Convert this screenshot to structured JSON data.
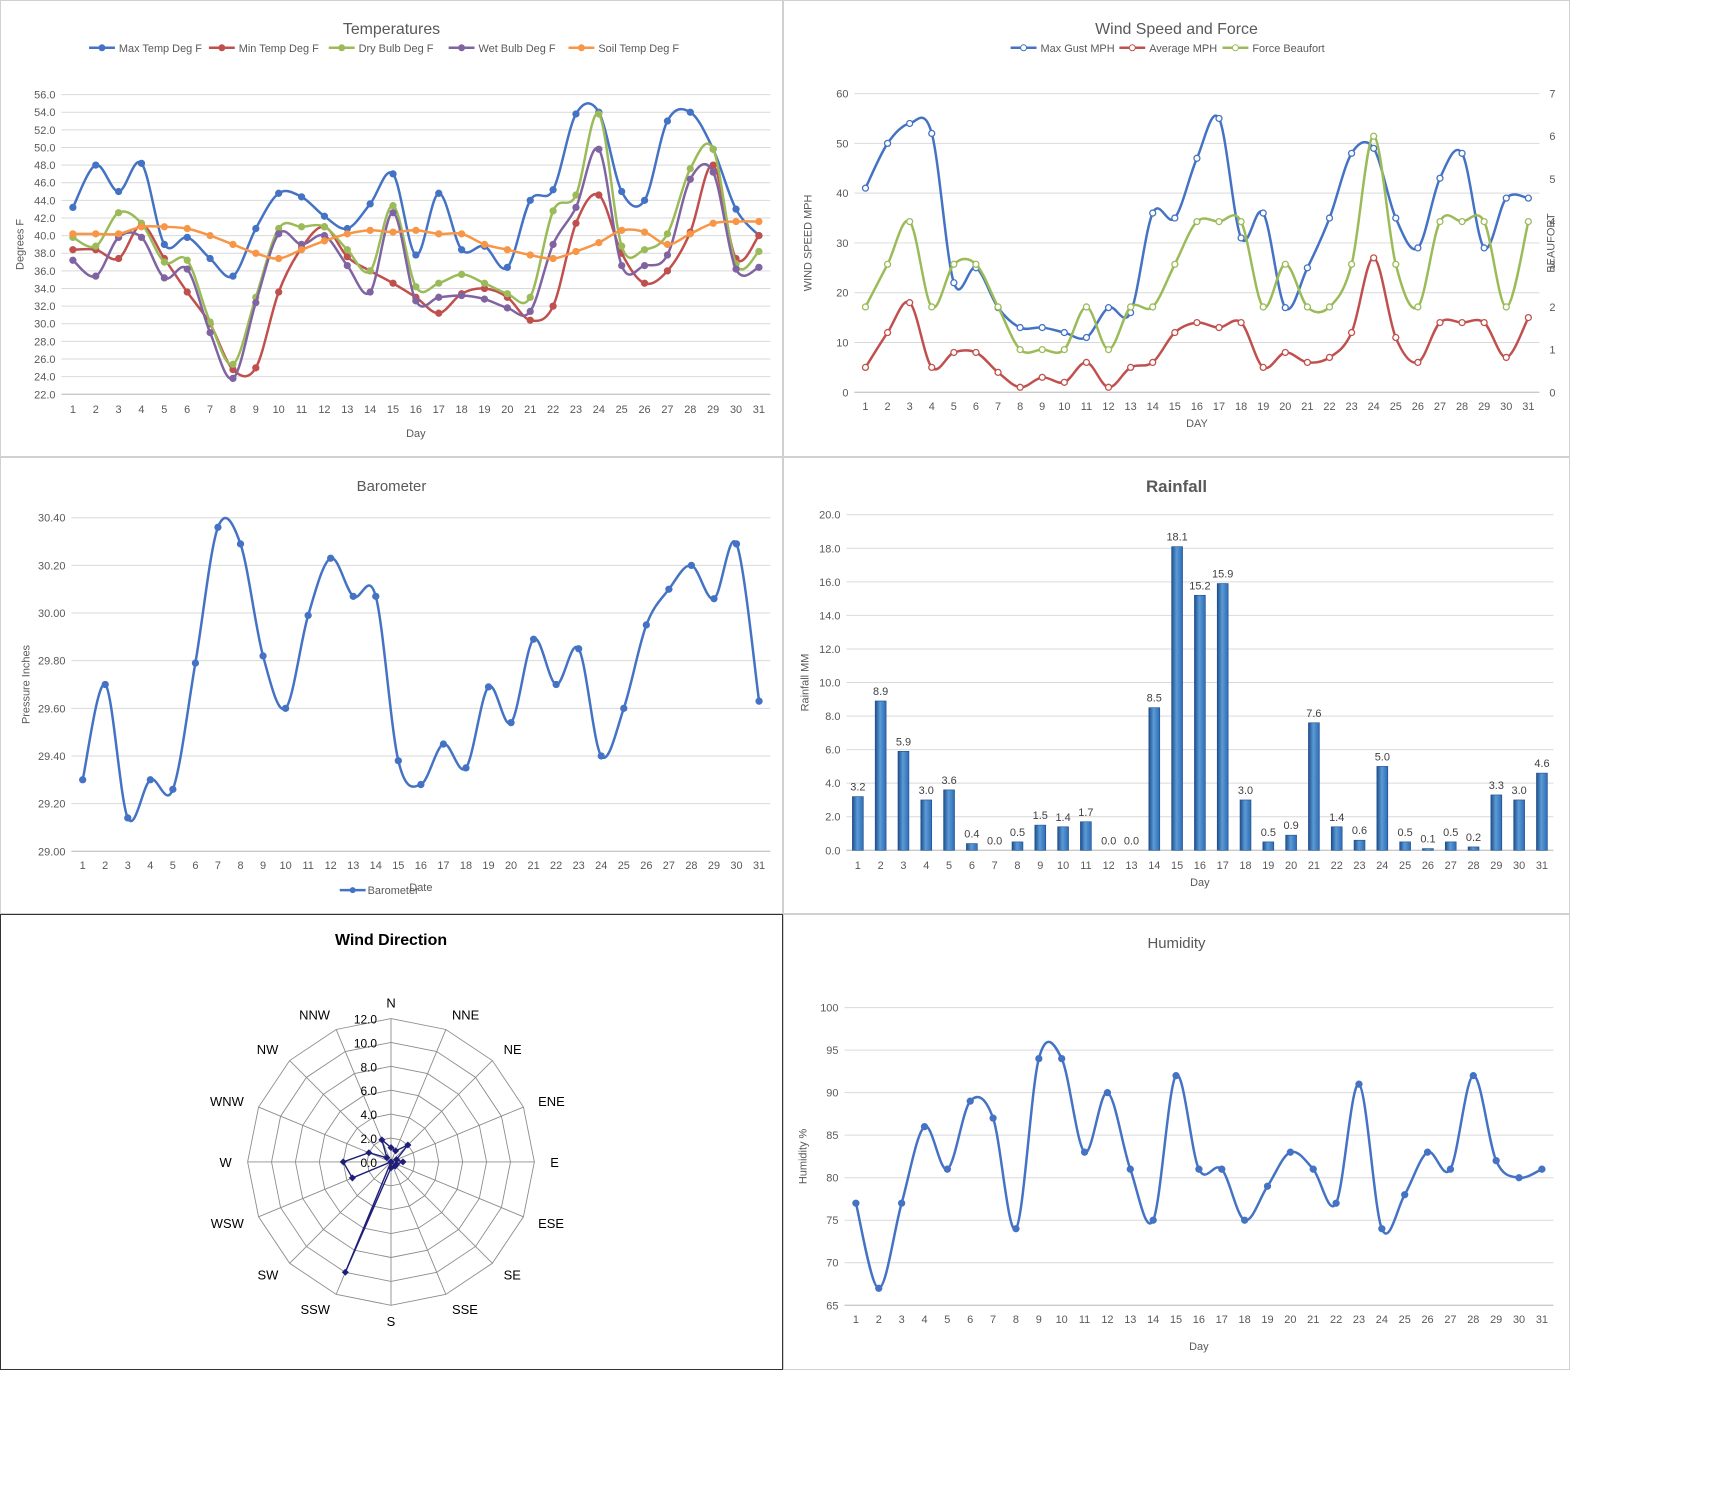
{
  "chart_data": [
    {
      "id": "temperatures",
      "type": "line",
      "title": "Temperatures",
      "xlabel": "Day",
      "ylabel": "Degrees F",
      "ylim": [
        22.0,
        56.0
      ],
      "y_step": 2.0,
      "y_decimals": 1,
      "grid": true,
      "legend": "top",
      "markers": "filled",
      "categories": [
        "1",
        "2",
        "3",
        "4",
        "5",
        "6",
        "7",
        "8",
        "9",
        "10",
        "11",
        "12",
        "13",
        "14",
        "15",
        "16",
        "17",
        "18",
        "19",
        "20",
        "21",
        "22",
        "23",
        "24",
        "25",
        "26",
        "27",
        "28",
        "29",
        "30",
        "31"
      ],
      "series": [
        {
          "name": "Max Temp Deg F",
          "color": "#4472C4",
          "values": [
            43.2,
            48.0,
            45.0,
            48.2,
            39.0,
            39.8,
            37.4,
            35.4,
            40.8,
            44.8,
            44.4,
            42.2,
            40.8,
            43.6,
            47.0,
            37.8,
            44.8,
            38.4,
            38.8,
            36.4,
            44.0,
            45.2,
            53.8,
            54.0,
            45.0,
            44.0,
            53.0,
            54.0,
            49.8,
            43.0,
            40.0
          ]
        },
        {
          "name": "Min Temp Deg F",
          "color": "#C0504D",
          "values": [
            38.4,
            38.4,
            37.4,
            41.2,
            37.4,
            33.6,
            30.0,
            24.8,
            25.0,
            33.6,
            38.6,
            41.0,
            37.6,
            36.0,
            34.6,
            33.0,
            31.2,
            33.4,
            34.0,
            33.0,
            30.4,
            32.0,
            41.4,
            44.6,
            38.0,
            34.6,
            36.0,
            40.4,
            48.0,
            37.4,
            40.0
          ]
        },
        {
          "name": "Dry Bulb Deg F",
          "color": "#9BBB59",
          "values": [
            39.8,
            38.8,
            42.6,
            41.4,
            37.0,
            37.2,
            30.2,
            25.4,
            33.0,
            40.8,
            41.0,
            41.0,
            38.4,
            36.0,
            43.4,
            34.2,
            34.6,
            35.6,
            34.6,
            33.4,
            33.0,
            42.8,
            44.6,
            53.8,
            38.8,
            38.4,
            40.2,
            47.6,
            49.8,
            36.8,
            38.2
          ]
        },
        {
          "name": "Wet Bulb Deg F",
          "color": "#8064A2",
          "values": [
            37.2,
            35.4,
            39.8,
            39.8,
            35.2,
            36.2,
            29.0,
            23.8,
            32.4,
            40.2,
            39.0,
            40.0,
            36.6,
            33.6,
            42.6,
            32.6,
            33.0,
            33.2,
            32.8,
            31.8,
            31.4,
            39.0,
            43.2,
            49.8,
            36.6,
            36.6,
            37.8,
            46.4,
            47.2,
            36.2,
            36.4
          ]
        },
        {
          "name": "Soil Temp Deg F",
          "color": "#F79646",
          "values": [
            40.2,
            40.2,
            40.2,
            41.0,
            41.0,
            40.8,
            40.0,
            39.0,
            38.0,
            37.4,
            38.4,
            39.4,
            40.2,
            40.6,
            40.4,
            40.6,
            40.2,
            40.2,
            39.0,
            38.4,
            37.8,
            37.4,
            38.2,
            39.2,
            40.6,
            40.4,
            39.0,
            40.2,
            41.4,
            41.6,
            41.6
          ]
        }
      ]
    },
    {
      "id": "wind",
      "type": "line",
      "title": "Wind Speed and Force",
      "xlabel": "DAY",
      "ylabel": "WIND SPEED MPH",
      "y2label": "BEAUFORT",
      "ylim": [
        0,
        60
      ],
      "y_step": 10,
      "y2lim": [
        0,
        7
      ],
      "y2_step": 1,
      "grid": true,
      "legend": "top",
      "markers": "hollow",
      "categories": [
        "1",
        "2",
        "3",
        "4",
        "5",
        "6",
        "7",
        "8",
        "9",
        "10",
        "11",
        "12",
        "13",
        "14",
        "15",
        "16",
        "17",
        "18",
        "19",
        "20",
        "21",
        "22",
        "23",
        "24",
        "25",
        "26",
        "27",
        "28",
        "29",
        "30",
        "31"
      ],
      "series": [
        {
          "name": "Max Gust MPH",
          "color": "#4472C4",
          "axis": "left",
          "values": [
            41,
            50,
            54,
            52,
            22,
            25,
            17,
            13,
            13,
            12,
            11,
            17,
            16,
            36,
            35,
            47,
            55,
            31,
            36,
            17,
            25,
            35,
            48,
            49,
            35,
            29,
            43,
            48,
            29,
            39,
            39
          ]
        },
        {
          "name": "Average MPH",
          "color": "#C0504D",
          "axis": "left",
          "values": [
            5,
            12,
            18,
            5,
            8,
            8,
            4,
            1,
            3,
            2,
            6,
            1,
            5,
            6,
            12,
            14,
            13,
            14,
            5,
            8,
            6,
            7,
            12,
            27,
            11,
            6,
            14,
            14,
            14,
            7,
            15
          ]
        },
        {
          "name": "Force Beaufort",
          "color": "#9BBB59",
          "axis": "right",
          "values": [
            2,
            3,
            4,
            2,
            3,
            3,
            2,
            1,
            1,
            1,
            2,
            1,
            2,
            2,
            3,
            4,
            4,
            4,
            2,
            3,
            2,
            2,
            3,
            6,
            3,
            2,
            4,
            4,
            4,
            2,
            4
          ]
        }
      ]
    },
    {
      "id": "barometer",
      "type": "line",
      "title": "Barometer",
      "xlabel": "Date",
      "ylabel": "Pressure Inches",
      "ylim": [
        29.0,
        30.4
      ],
      "y_step": 0.2,
      "y_decimals": 2,
      "grid": true,
      "legend": "bottom",
      "markers": "filled",
      "categories": [
        "1",
        "2",
        "3",
        "4",
        "5",
        "6",
        "7",
        "8",
        "9",
        "10",
        "11",
        "12",
        "13",
        "14",
        "15",
        "16",
        "17",
        "18",
        "19",
        "20",
        "21",
        "22",
        "23",
        "24",
        "25",
        "26",
        "27",
        "28",
        "29",
        "30",
        "31"
      ],
      "series": [
        {
          "name": "Barometer",
          "color": "#4472C4",
          "values": [
            29.3,
            29.7,
            29.14,
            29.3,
            29.26,
            29.79,
            30.36,
            30.29,
            29.82,
            29.6,
            29.99,
            30.23,
            30.07,
            30.07,
            29.38,
            29.28,
            29.45,
            29.35,
            29.69,
            29.54,
            29.89,
            29.7,
            29.85,
            29.4,
            29.6,
            29.95,
            30.1,
            30.2,
            30.06,
            30.29,
            29.63
          ]
        }
      ]
    },
    {
      "id": "rainfall",
      "type": "bar",
      "title": "Rainfall",
      "xlabel": "Day",
      "ylabel": "Rainfall MM",
      "ylim": [
        0,
        20
      ],
      "y_step": 2,
      "y_decimals": 1,
      "grid": true,
      "categories": [
        "1",
        "2",
        "3",
        "4",
        "5",
        "6",
        "7",
        "8",
        "9",
        "10",
        "11",
        "12",
        "13",
        "14",
        "15",
        "16",
        "17",
        "18",
        "19",
        "20",
        "21",
        "22",
        "23",
        "24",
        "25",
        "26",
        "27",
        "28",
        "29",
        "30",
        "31"
      ],
      "values": [
        3.2,
        8.9,
        5.9,
        3.0,
        3.6,
        0.4,
        0.0,
        0.5,
        1.5,
        1.4,
        1.7,
        0.0,
        0.0,
        8.5,
        18.1,
        15.2,
        15.9,
        3.0,
        0.5,
        0.9,
        7.6,
        1.4,
        0.6,
        5.0,
        0.5,
        0.1,
        0.5,
        0.2,
        3.3,
        3.0,
        4.6
      ],
      "color": "#2E6BB5"
    },
    {
      "id": "wind_direction",
      "type": "radar",
      "title": "Wind Direction",
      "directions": [
        "N",
        "NNE",
        "NE",
        "ENE",
        "E",
        "ESE",
        "SE",
        "SSE",
        "S",
        "SSW",
        "SW",
        "WSW",
        "W",
        "WNW",
        "NW",
        "NNW"
      ],
      "values": [
        1.2,
        1.0,
        2.0,
        0.5,
        1.0,
        0.5,
        0.5,
        0.0,
        0.5,
        10.0,
        0.0,
        3.5,
        4.0,
        2.0,
        0.5,
        2.0
      ],
      "rlim": [
        0,
        12.0
      ],
      "r_step": 2.0,
      "r_decimals": 1,
      "color": "#1F1F7A"
    },
    {
      "id": "humidity",
      "type": "line",
      "title": "Humidity",
      "xlabel": "Day",
      "ylabel": "Humidity %",
      "ylim": [
        65,
        100
      ],
      "y_step": 5,
      "y_decimals": 0,
      "grid": true,
      "markers": "filled",
      "categories": [
        "1",
        "2",
        "3",
        "4",
        "5",
        "6",
        "7",
        "8",
        "9",
        "10",
        "11",
        "12",
        "13",
        "14",
        "15",
        "16",
        "17",
        "18",
        "19",
        "20",
        "21",
        "22",
        "23",
        "24",
        "25",
        "26",
        "27",
        "28",
        "29",
        "30",
        "31"
      ],
      "series": [
        {
          "name": "Humidity",
          "color": "#4472C4",
          "values": [
            77,
            67,
            77,
            86,
            81,
            89,
            87,
            74,
            94,
            94,
            83,
            90,
            81,
            75,
            92,
            81,
            81,
            75,
            79,
            83,
            81,
            77,
            91,
            74,
            78,
            83,
            81,
            92,
            82,
            80,
            81
          ]
        }
      ]
    }
  ]
}
